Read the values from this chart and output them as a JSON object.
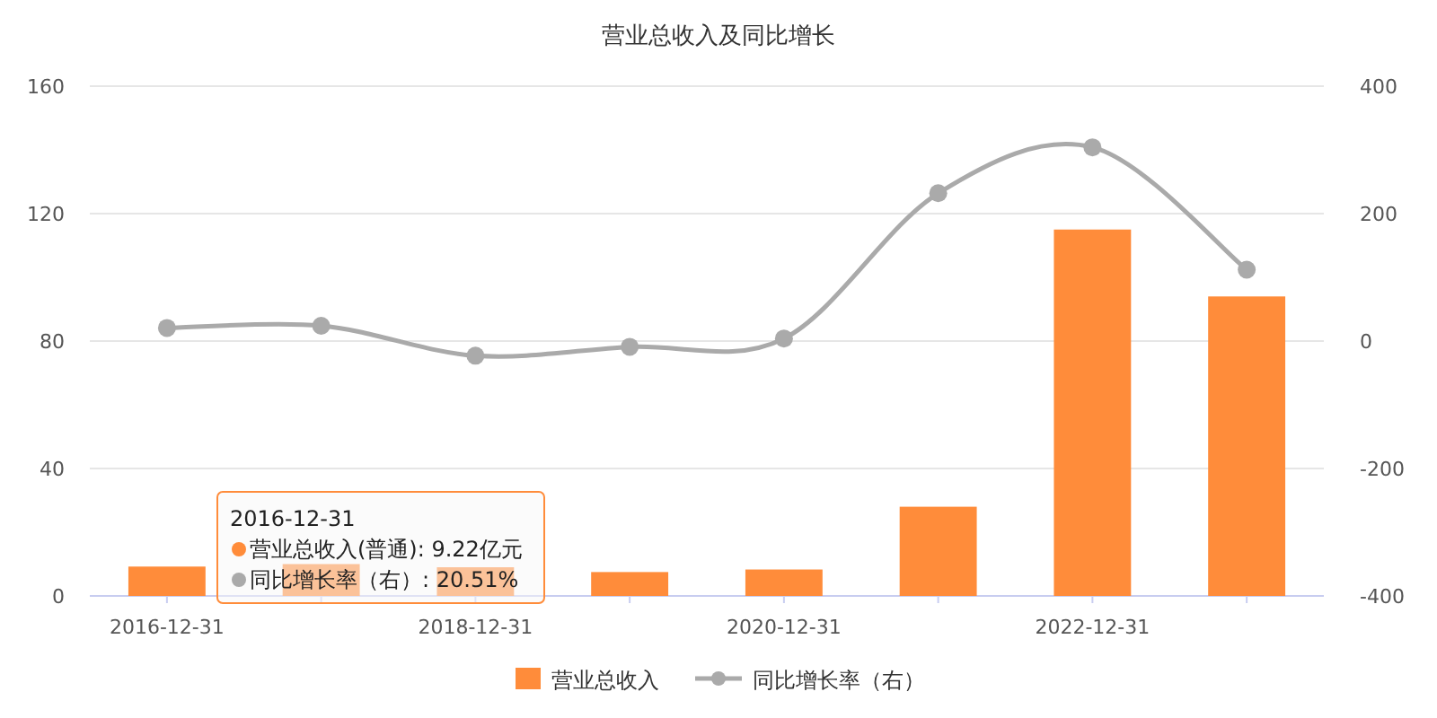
{
  "chart_data": {
    "type": "bar",
    "title": "营业总收入及同比增长",
    "categories": [
      "2016-12-31",
      null,
      "2018-12-31",
      null,
      "2020-12-31",
      null,
      "2022-12-31",
      null
    ],
    "series": [
      {
        "name": "营业总收入",
        "color": "#ff8c3a",
        "values": [
          9.22,
          10,
          9,
          7.5,
          8.3,
          28,
          115,
          94
        ]
      },
      {
        "name": "同比增长率（右）",
        "type": "line",
        "axis": "y2",
        "color": "#aaaaaa",
        "values": [
          20.51,
          24,
          -23,
          -9,
          4,
          232,
          304,
          112
        ]
      }
    ],
    "ylim": [
      0,
      160
    ],
    "yticks": [
      0,
      40,
      80,
      120,
      160
    ],
    "y2lim": [
      -400,
      400
    ],
    "y2ticks": [
      -400,
      -200,
      0,
      200,
      400
    ],
    "grid": "y",
    "legend": "bottom",
    "marker": "circle",
    "annotations": [
      "2016-12-31",
      "营业总收入(普通): 9.22亿元",
      "同比增长率（右）: 20.51%"
    ]
  }
}
